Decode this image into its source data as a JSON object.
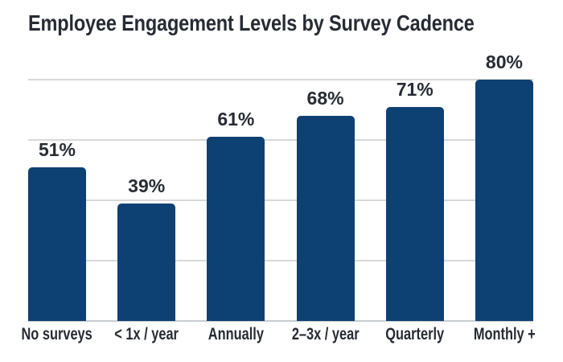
{
  "chart_data": {
    "type": "bar",
    "title": "Employee Engagement Levels by Survey Cadence",
    "categories": [
      "No surveys",
      "< 1x / year",
      "Annually",
      "2–3x / year",
      "Quarterly",
      "Monthly +"
    ],
    "values": [
      51,
      39,
      61,
      68,
      71,
      80
    ],
    "value_labels": [
      "51%",
      "39%",
      "61%",
      "68%",
      "71%",
      "80%"
    ],
    "xlabel": "",
    "ylabel": "",
    "ylim": [
      0,
      92
    ],
    "gridline_percents": [
      0,
      20,
      40,
      60,
      80
    ],
    "grid": "horizontal",
    "legend_position": "none",
    "colors": {
      "bar": "#0e4173",
      "text": "#272b33",
      "gridline": "#d9d9d9",
      "baseline": "#c9cdd0",
      "background": "#ffffff"
    }
  }
}
